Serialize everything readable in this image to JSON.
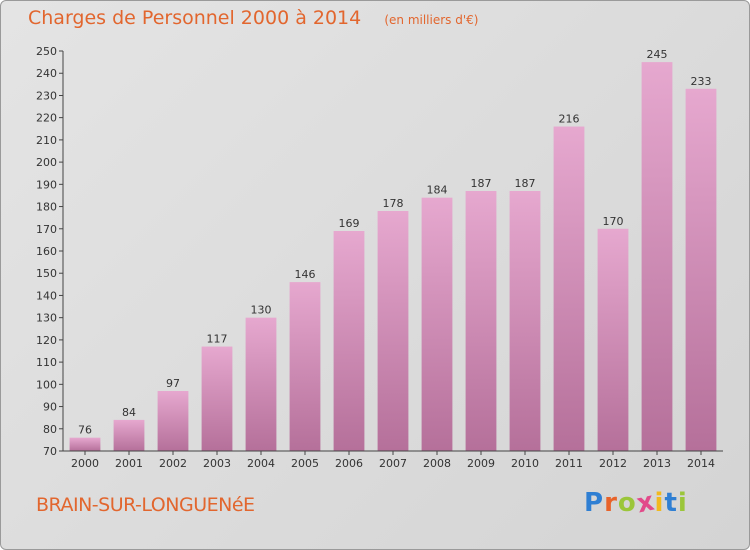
{
  "header": {
    "title": "Charges de Personnel 2000 à 2014",
    "subtitle": "(en milliers d'€)"
  },
  "footer": {
    "commune": "BRAIN-SUR-LONGUENéE",
    "logo_letters": [
      "P",
      "r",
      "o",
      "x",
      "i",
      "t",
      "i"
    ],
    "logo_colors": [
      "#2f7fd3",
      "#e8632a",
      "#9bc63a",
      "#e24a8a",
      "#f2b91e",
      "#2f7fd3",
      "#9bc63a"
    ]
  },
  "colors": {
    "bar_top": "#e6a8cf",
    "bar_bottom": "#b5709a",
    "axis": "#444444",
    "text": "#333333"
  },
  "chart_data": {
    "type": "bar",
    "categories": [
      "2000",
      "2001",
      "2002",
      "2003",
      "2004",
      "2005",
      "2006",
      "2007",
      "2008",
      "2009",
      "2010",
      "2011",
      "2012",
      "2013",
      "2014"
    ],
    "values": [
      76,
      84,
      97,
      117,
      130,
      146,
      169,
      178,
      184,
      187,
      187,
      216,
      170,
      245,
      233
    ],
    "ylim": [
      70,
      250
    ],
    "yticks": [
      70,
      80,
      90,
      100,
      110,
      120,
      130,
      140,
      150,
      160,
      170,
      180,
      190,
      200,
      210,
      220,
      230,
      240,
      250
    ],
    "grid": false
  }
}
